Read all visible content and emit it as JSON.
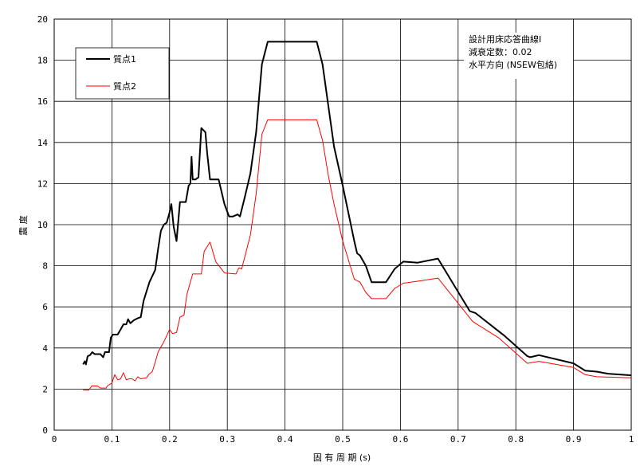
{
  "chart_data": {
    "type": "line",
    "xlabel": "固 有 周 期 (s)",
    "ylabel": "震 度",
    "xlim": [
      0,
      1
    ],
    "ylim": [
      0,
      20
    ],
    "x_ticks": [
      "0",
      "0.1",
      "0.2",
      "0.3",
      "0.4",
      "0.5",
      "0.6",
      "0.7",
      "0.8",
      "0.9",
      "1"
    ],
    "y_ticks": [
      "0",
      "2",
      "4",
      "6",
      "8",
      "10",
      "12",
      "14",
      "16",
      "18",
      "20"
    ],
    "grid": true,
    "legend_position": "top-left",
    "annotation": [
      "設計用床応答曲線Ⅰ",
      "減衰定数：0.02",
      "水平方向 (NSEW包絡)"
    ],
    "series": [
      {
        "name": "質点1",
        "color": "#000000",
        "points": [
          [
            0.05,
            3.2
          ],
          [
            0.053,
            3.35
          ],
          [
            0.055,
            3.2
          ],
          [
            0.058,
            3.6
          ],
          [
            0.062,
            3.65
          ],
          [
            0.066,
            3.8
          ],
          [
            0.07,
            3.7
          ],
          [
            0.08,
            3.7
          ],
          [
            0.085,
            3.55
          ],
          [
            0.088,
            3.8
          ],
          [
            0.095,
            3.8
          ],
          [
            0.098,
            4.5
          ],
          [
            0.102,
            4.65
          ],
          [
            0.11,
            4.65
          ],
          [
            0.115,
            4.9
          ],
          [
            0.12,
            5.15
          ],
          [
            0.125,
            5.15
          ],
          [
            0.128,
            5.4
          ],
          [
            0.132,
            5.2
          ],
          [
            0.138,
            5.35
          ],
          [
            0.145,
            5.45
          ],
          [
            0.15,
            5.5
          ],
          [
            0.155,
            6.3
          ],
          [
            0.165,
            7.2
          ],
          [
            0.175,
            7.8
          ],
          [
            0.18,
            8.8
          ],
          [
            0.185,
            9.7
          ],
          [
            0.19,
            10.0
          ],
          [
            0.195,
            10.1
          ],
          [
            0.2,
            10.6
          ],
          [
            0.203,
            11.0
          ],
          [
            0.207,
            9.9
          ],
          [
            0.212,
            9.2
          ],
          [
            0.218,
            11.1
          ],
          [
            0.228,
            11.1
          ],
          [
            0.233,
            11.9
          ],
          [
            0.236,
            12.0
          ],
          [
            0.238,
            13.3
          ],
          [
            0.24,
            12.2
          ],
          [
            0.245,
            12.2
          ],
          [
            0.25,
            12.3
          ],
          [
            0.255,
            14.7
          ],
          [
            0.262,
            14.5
          ],
          [
            0.265,
            13.5
          ],
          [
            0.27,
            12.2
          ],
          [
            0.285,
            12.2
          ],
          [
            0.295,
            11.0
          ],
          [
            0.303,
            10.4
          ],
          [
            0.31,
            10.4
          ],
          [
            0.318,
            10.5
          ],
          [
            0.322,
            10.4
          ],
          [
            0.33,
            11.3
          ],
          [
            0.34,
            12.5
          ],
          [
            0.35,
            14.5
          ],
          [
            0.36,
            17.8
          ],
          [
            0.37,
            18.9
          ],
          [
            0.455,
            18.9
          ],
          [
            0.465,
            17.8
          ],
          [
            0.475,
            15.8
          ],
          [
            0.485,
            13.8
          ],
          [
            0.5,
            11.9
          ],
          [
            0.52,
            9.2
          ],
          [
            0.525,
            8.6
          ],
          [
            0.53,
            8.5
          ],
          [
            0.54,
            8.0
          ],
          [
            0.55,
            7.2
          ],
          [
            0.56,
            7.2
          ],
          [
            0.575,
            7.2
          ],
          [
            0.59,
            7.85
          ],
          [
            0.605,
            8.2
          ],
          [
            0.63,
            8.15
          ],
          [
            0.665,
            8.35
          ],
          [
            0.72,
            5.8
          ],
          [
            0.73,
            5.7
          ],
          [
            0.78,
            4.6
          ],
          [
            0.82,
            3.6
          ],
          [
            0.825,
            3.55
          ],
          [
            0.84,
            3.65
          ],
          [
            0.9,
            3.25
          ],
          [
            0.92,
            2.9
          ],
          [
            0.94,
            2.85
          ],
          [
            0.96,
            2.75
          ],
          [
            1.0,
            2.67
          ]
        ]
      },
      {
        "name": "質点2",
        "color": "#ff0000",
        "points": [
          [
            0.05,
            1.95
          ],
          [
            0.06,
            1.95
          ],
          [
            0.065,
            2.15
          ],
          [
            0.075,
            2.15
          ],
          [
            0.08,
            2.05
          ],
          [
            0.09,
            2.05
          ],
          [
            0.092,
            2.15
          ],
          [
            0.1,
            2.3
          ],
          [
            0.105,
            2.7
          ],
          [
            0.11,
            2.45
          ],
          [
            0.115,
            2.5
          ],
          [
            0.12,
            2.8
          ],
          [
            0.125,
            2.45
          ],
          [
            0.13,
            2.5
          ],
          [
            0.135,
            2.5
          ],
          [
            0.14,
            2.4
          ],
          [
            0.145,
            2.6
          ],
          [
            0.15,
            2.5
          ],
          [
            0.16,
            2.55
          ],
          [
            0.165,
            2.75
          ],
          [
            0.17,
            2.85
          ],
          [
            0.175,
            3.3
          ],
          [
            0.18,
            3.8
          ],
          [
            0.19,
            4.3
          ],
          [
            0.2,
            4.9
          ],
          [
            0.205,
            4.7
          ],
          [
            0.212,
            4.75
          ],
          [
            0.218,
            5.5
          ],
          [
            0.225,
            5.6
          ],
          [
            0.23,
            6.6
          ],
          [
            0.235,
            7.1
          ],
          [
            0.24,
            7.6
          ],
          [
            0.255,
            7.6
          ],
          [
            0.26,
            8.7
          ],
          [
            0.27,
            9.15
          ],
          [
            0.28,
            8.2
          ],
          [
            0.295,
            7.65
          ],
          [
            0.315,
            7.6
          ],
          [
            0.32,
            7.9
          ],
          [
            0.325,
            7.85
          ],
          [
            0.34,
            9.5
          ],
          [
            0.35,
            11.5
          ],
          [
            0.36,
            14.4
          ],
          [
            0.37,
            15.1
          ],
          [
            0.455,
            15.1
          ],
          [
            0.465,
            14.1
          ],
          [
            0.475,
            12.4
          ],
          [
            0.485,
            11.0
          ],
          [
            0.5,
            9.2
          ],
          [
            0.52,
            7.35
          ],
          [
            0.53,
            7.2
          ],
          [
            0.54,
            6.7
          ],
          [
            0.55,
            6.4
          ],
          [
            0.575,
            6.4
          ],
          [
            0.59,
            6.9
          ],
          [
            0.605,
            7.15
          ],
          [
            0.63,
            7.25
          ],
          [
            0.665,
            7.4
          ],
          [
            0.725,
            5.3
          ],
          [
            0.73,
            5.2
          ],
          [
            0.77,
            4.5
          ],
          [
            0.82,
            3.25
          ],
          [
            0.84,
            3.35
          ],
          [
            0.9,
            3.05
          ],
          [
            0.92,
            2.7
          ],
          [
            0.94,
            2.6
          ],
          [
            1.0,
            2.55
          ]
        ]
      }
    ]
  }
}
